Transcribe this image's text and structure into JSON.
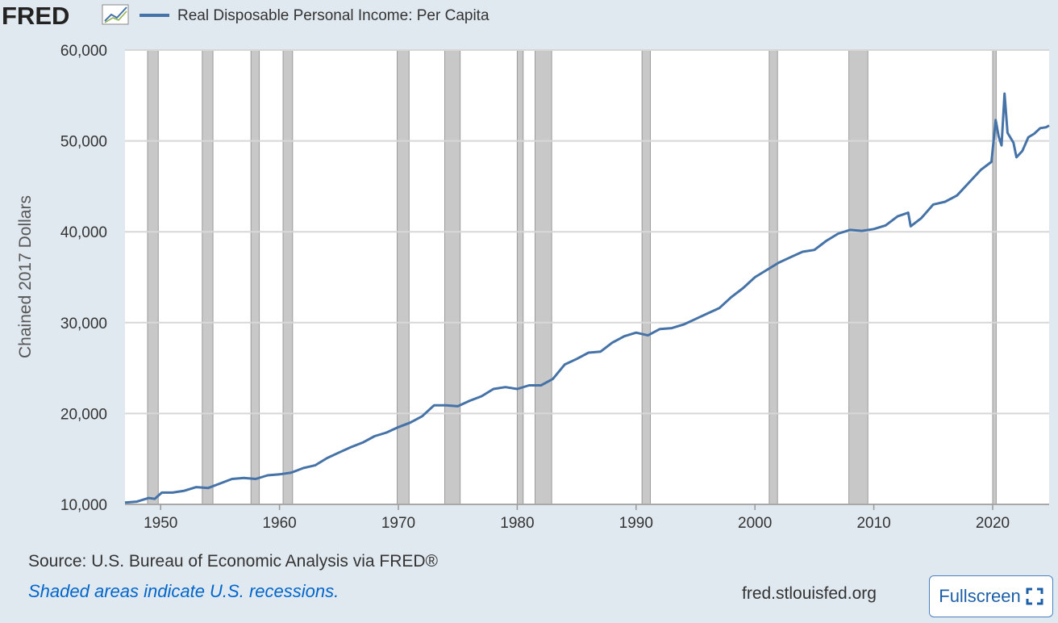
{
  "logo": {
    "text": "FRED"
  },
  "legend": {
    "series_label": "Real Disposable Personal Income: Per Capita",
    "line_color": "#4572a7"
  },
  "footer": {
    "source": "Source: U.S. Bureau of Economic Analysis via FRED®",
    "shaded_note": "Shaded areas indicate U.S. recessions.",
    "site": "fred.stlouisfed.org",
    "fullscreen_label": "Fullscreen"
  },
  "colors": {
    "background": "#e1e9f0",
    "recession": "#c8c8c8",
    "grid": "#d7d7d7",
    "line": "#4572a7"
  },
  "chart_data": {
    "type": "line",
    "title": "",
    "xlabel": "",
    "ylabel": "Chained 2017 Dollars",
    "xlim": [
      1947,
      2024.75
    ],
    "ylim": [
      10000,
      60000
    ],
    "x_ticks": [
      1950,
      1960,
      1970,
      1980,
      1990,
      2000,
      2010,
      2020
    ],
    "y_ticks": [
      10000,
      20000,
      30000,
      40000,
      50000,
      60000
    ],
    "y_tick_labels": [
      "10,000",
      "20,000",
      "30,000",
      "40,000",
      "50,000",
      "60,000"
    ],
    "grid": true,
    "legend_position": "top-left",
    "recessions": [
      [
        1948.9,
        1949.8
      ],
      [
        1953.5,
        1954.4
      ],
      [
        1957.6,
        1958.3
      ],
      [
        1960.3,
        1961.1
      ],
      [
        1969.9,
        1970.9
      ],
      [
        1973.9,
        1975.2
      ],
      [
        1980.0,
        1980.5
      ],
      [
        1981.5,
        1982.9
      ],
      [
        1990.5,
        1991.2
      ],
      [
        2001.2,
        2001.9
      ],
      [
        2007.9,
        2009.5
      ],
      [
        2020.0,
        2020.3
      ]
    ],
    "series": [
      {
        "name": "Real Disposable Personal Income: Per Capita",
        "points": [
          [
            1947,
            10200
          ],
          [
            1948,
            10300
          ],
          [
            1949,
            10700
          ],
          [
            1949.5,
            10600
          ],
          [
            1950.1,
            11300
          ],
          [
            1951,
            11300
          ],
          [
            1952,
            11500
          ],
          [
            1953,
            11900
          ],
          [
            1954,
            11800
          ],
          [
            1955,
            12300
          ],
          [
            1956,
            12800
          ],
          [
            1957,
            12900
          ],
          [
            1958,
            12800
          ],
          [
            1959,
            13200
          ],
          [
            1960,
            13300
          ],
          [
            1961,
            13500
          ],
          [
            1962,
            14000
          ],
          [
            1963,
            14300
          ],
          [
            1964,
            15100
          ],
          [
            1965,
            15700
          ],
          [
            1966,
            16300
          ],
          [
            1967,
            16800
          ],
          [
            1968,
            17500
          ],
          [
            1969,
            17900
          ],
          [
            1970,
            18500
          ],
          [
            1971,
            19000
          ],
          [
            1972,
            19700
          ],
          [
            1973,
            20900
          ],
          [
            1974,
            20900
          ],
          [
            1975,
            20800
          ],
          [
            1976,
            21400
          ],
          [
            1977,
            21900
          ],
          [
            1978,
            22700
          ],
          [
            1979,
            22900
          ],
          [
            1980,
            22700
          ],
          [
            1981,
            23100
          ],
          [
            1982,
            23100
          ],
          [
            1983,
            23800
          ],
          [
            1984,
            25400
          ],
          [
            1985,
            26000
          ],
          [
            1986,
            26700
          ],
          [
            1987,
            26800
          ],
          [
            1988,
            27800
          ],
          [
            1989,
            28500
          ],
          [
            1990,
            28900
          ],
          [
            1991,
            28600
          ],
          [
            1992,
            29300
          ],
          [
            1993,
            29400
          ],
          [
            1994,
            29800
          ],
          [
            1995,
            30400
          ],
          [
            1996,
            31000
          ],
          [
            1997,
            31600
          ],
          [
            1998,
            32800
          ],
          [
            1999,
            33800
          ],
          [
            2000,
            35000
          ],
          [
            2001,
            35800
          ],
          [
            2002,
            36600
          ],
          [
            2003,
            37200
          ],
          [
            2004,
            37800
          ],
          [
            2005,
            38000
          ],
          [
            2006,
            39000
          ],
          [
            2007,
            39800
          ],
          [
            2008,
            40200
          ],
          [
            2009,
            40100
          ],
          [
            2010,
            40300
          ],
          [
            2011,
            40700
          ],
          [
            2012,
            41700
          ],
          [
            2012.9,
            42100
          ],
          [
            2013.1,
            40600
          ],
          [
            2014,
            41500
          ],
          [
            2015,
            43000
          ],
          [
            2016,
            43300
          ],
          [
            2017,
            44000
          ],
          [
            2018,
            45400
          ],
          [
            2019,
            46800
          ],
          [
            2019.9,
            47700
          ],
          [
            2020.25,
            52300
          ],
          [
            2020.5,
            50500
          ],
          [
            2020.75,
            49500
          ],
          [
            2021.0,
            55200
          ],
          [
            2021.25,
            50900
          ],
          [
            2021.75,
            49800
          ],
          [
            2022.0,
            48200
          ],
          [
            2022.5,
            48900
          ],
          [
            2023.0,
            50400
          ],
          [
            2023.5,
            50800
          ],
          [
            2024.0,
            51400
          ],
          [
            2024.5,
            51500
          ],
          [
            2024.75,
            51700
          ]
        ]
      }
    ]
  }
}
